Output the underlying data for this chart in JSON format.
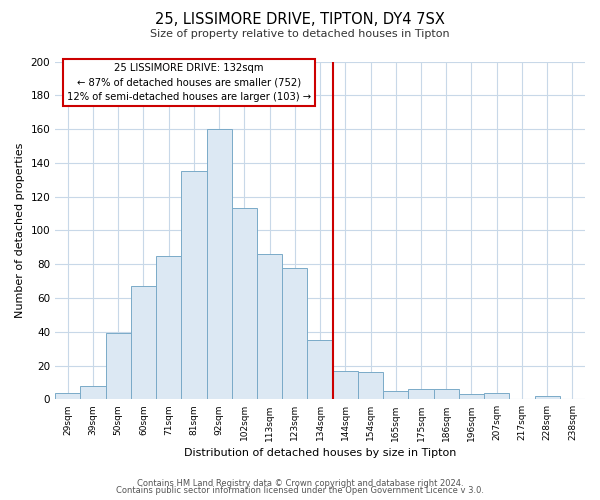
{
  "title1": "25, LISSIMORE DRIVE, TIPTON, DY4 7SX",
  "title2": "Size of property relative to detached houses in Tipton",
  "xlabel": "Distribution of detached houses by size in Tipton",
  "ylabel": "Number of detached properties",
  "bin_labels": [
    "29sqm",
    "39sqm",
    "50sqm",
    "60sqm",
    "71sqm",
    "81sqm",
    "92sqm",
    "102sqm",
    "113sqm",
    "123sqm",
    "134sqm",
    "144sqm",
    "154sqm",
    "165sqm",
    "175sqm",
    "186sqm",
    "196sqm",
    "207sqm",
    "217sqm",
    "228sqm",
    "238sqm"
  ],
  "bar_heights": [
    4,
    8,
    39,
    67,
    85,
    135,
    160,
    113,
    86,
    78,
    35,
    17,
    16,
    5,
    6,
    6,
    3,
    4,
    0,
    2,
    0
  ],
  "bar_color": "#dce8f3",
  "bar_edge_color": "#7aaac8",
  "vline_x": 10.5,
  "vline_color": "#cc0000",
  "annotation_title": "25 LISSIMORE DRIVE: 132sqm",
  "annotation_line1": "← 87% of detached houses are smaller (752)",
  "annotation_line2": "12% of semi-detached houses are larger (103) →",
  "annotation_box_color": "#ffffff",
  "annotation_box_edge": "#cc0000",
  "ylim": [
    0,
    200
  ],
  "yticks": [
    0,
    20,
    40,
    60,
    80,
    100,
    120,
    140,
    160,
    180,
    200
  ],
  "footer1": "Contains HM Land Registry data © Crown copyright and database right 2024.",
  "footer2": "Contains public sector information licensed under the Open Government Licence v 3.0.",
  "bg_color": "#ffffff",
  "grid_color": "#c8d8e8"
}
